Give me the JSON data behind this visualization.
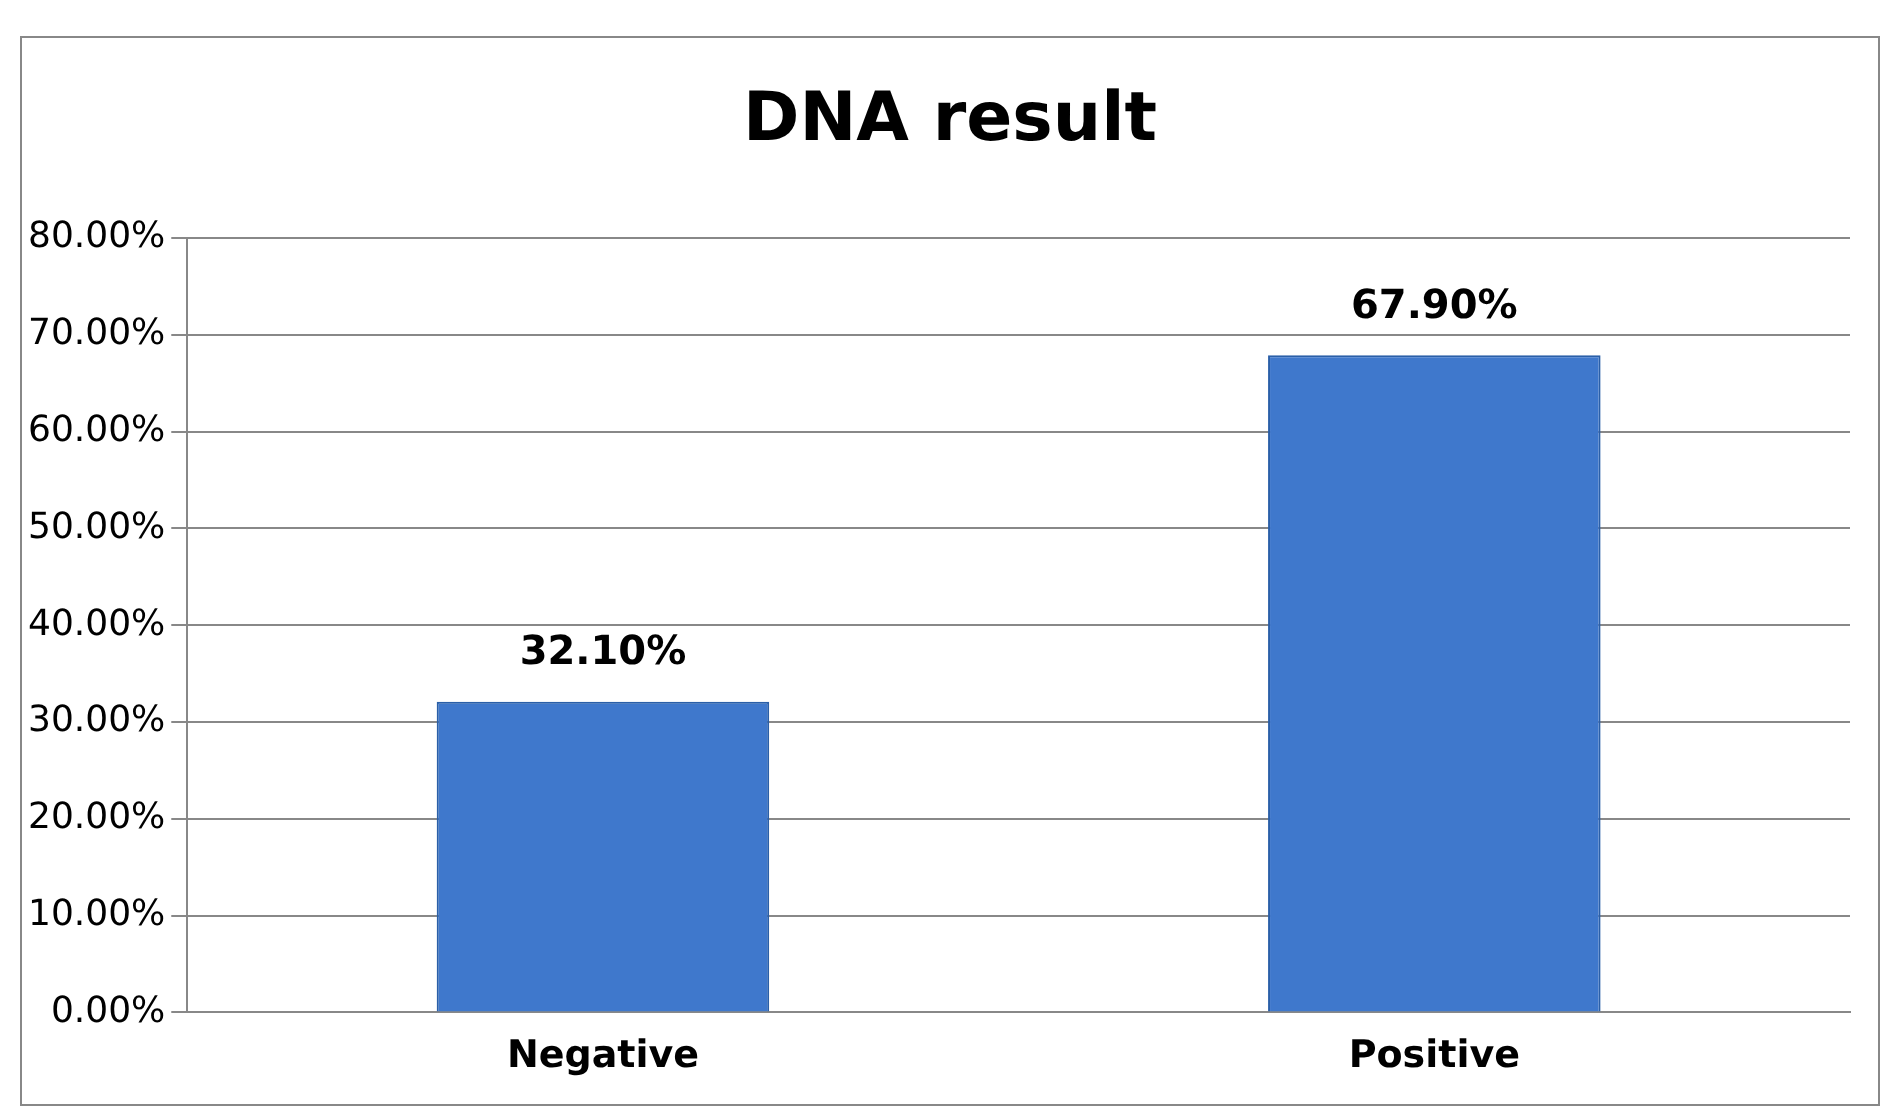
{
  "chart_data": {
    "type": "bar",
    "title": "DNA result",
    "categories": [
      "Negative",
      "Positive"
    ],
    "values": [
      32.1,
      67.9
    ],
    "color": "#3f78cc",
    "value_labels": [
      "32.10%",
      "67.90%"
    ],
    "ylim": [
      0,
      80
    ],
    "yticks": [
      {
        "value": 0,
        "label": "0.00%"
      },
      {
        "value": 10,
        "label": "10.00%"
      },
      {
        "value": 20,
        "label": "20.00%"
      },
      {
        "value": 30,
        "label": "30.00%"
      },
      {
        "value": 40,
        "label": "40.00%"
      },
      {
        "value": 50,
        "label": "50.00%"
      },
      {
        "value": 60,
        "label": "60.00%"
      },
      {
        "value": 70,
        "label": "70.00%"
      },
      {
        "value": 80,
        "label": "80.00%"
      }
    ],
    "grid": "y"
  }
}
